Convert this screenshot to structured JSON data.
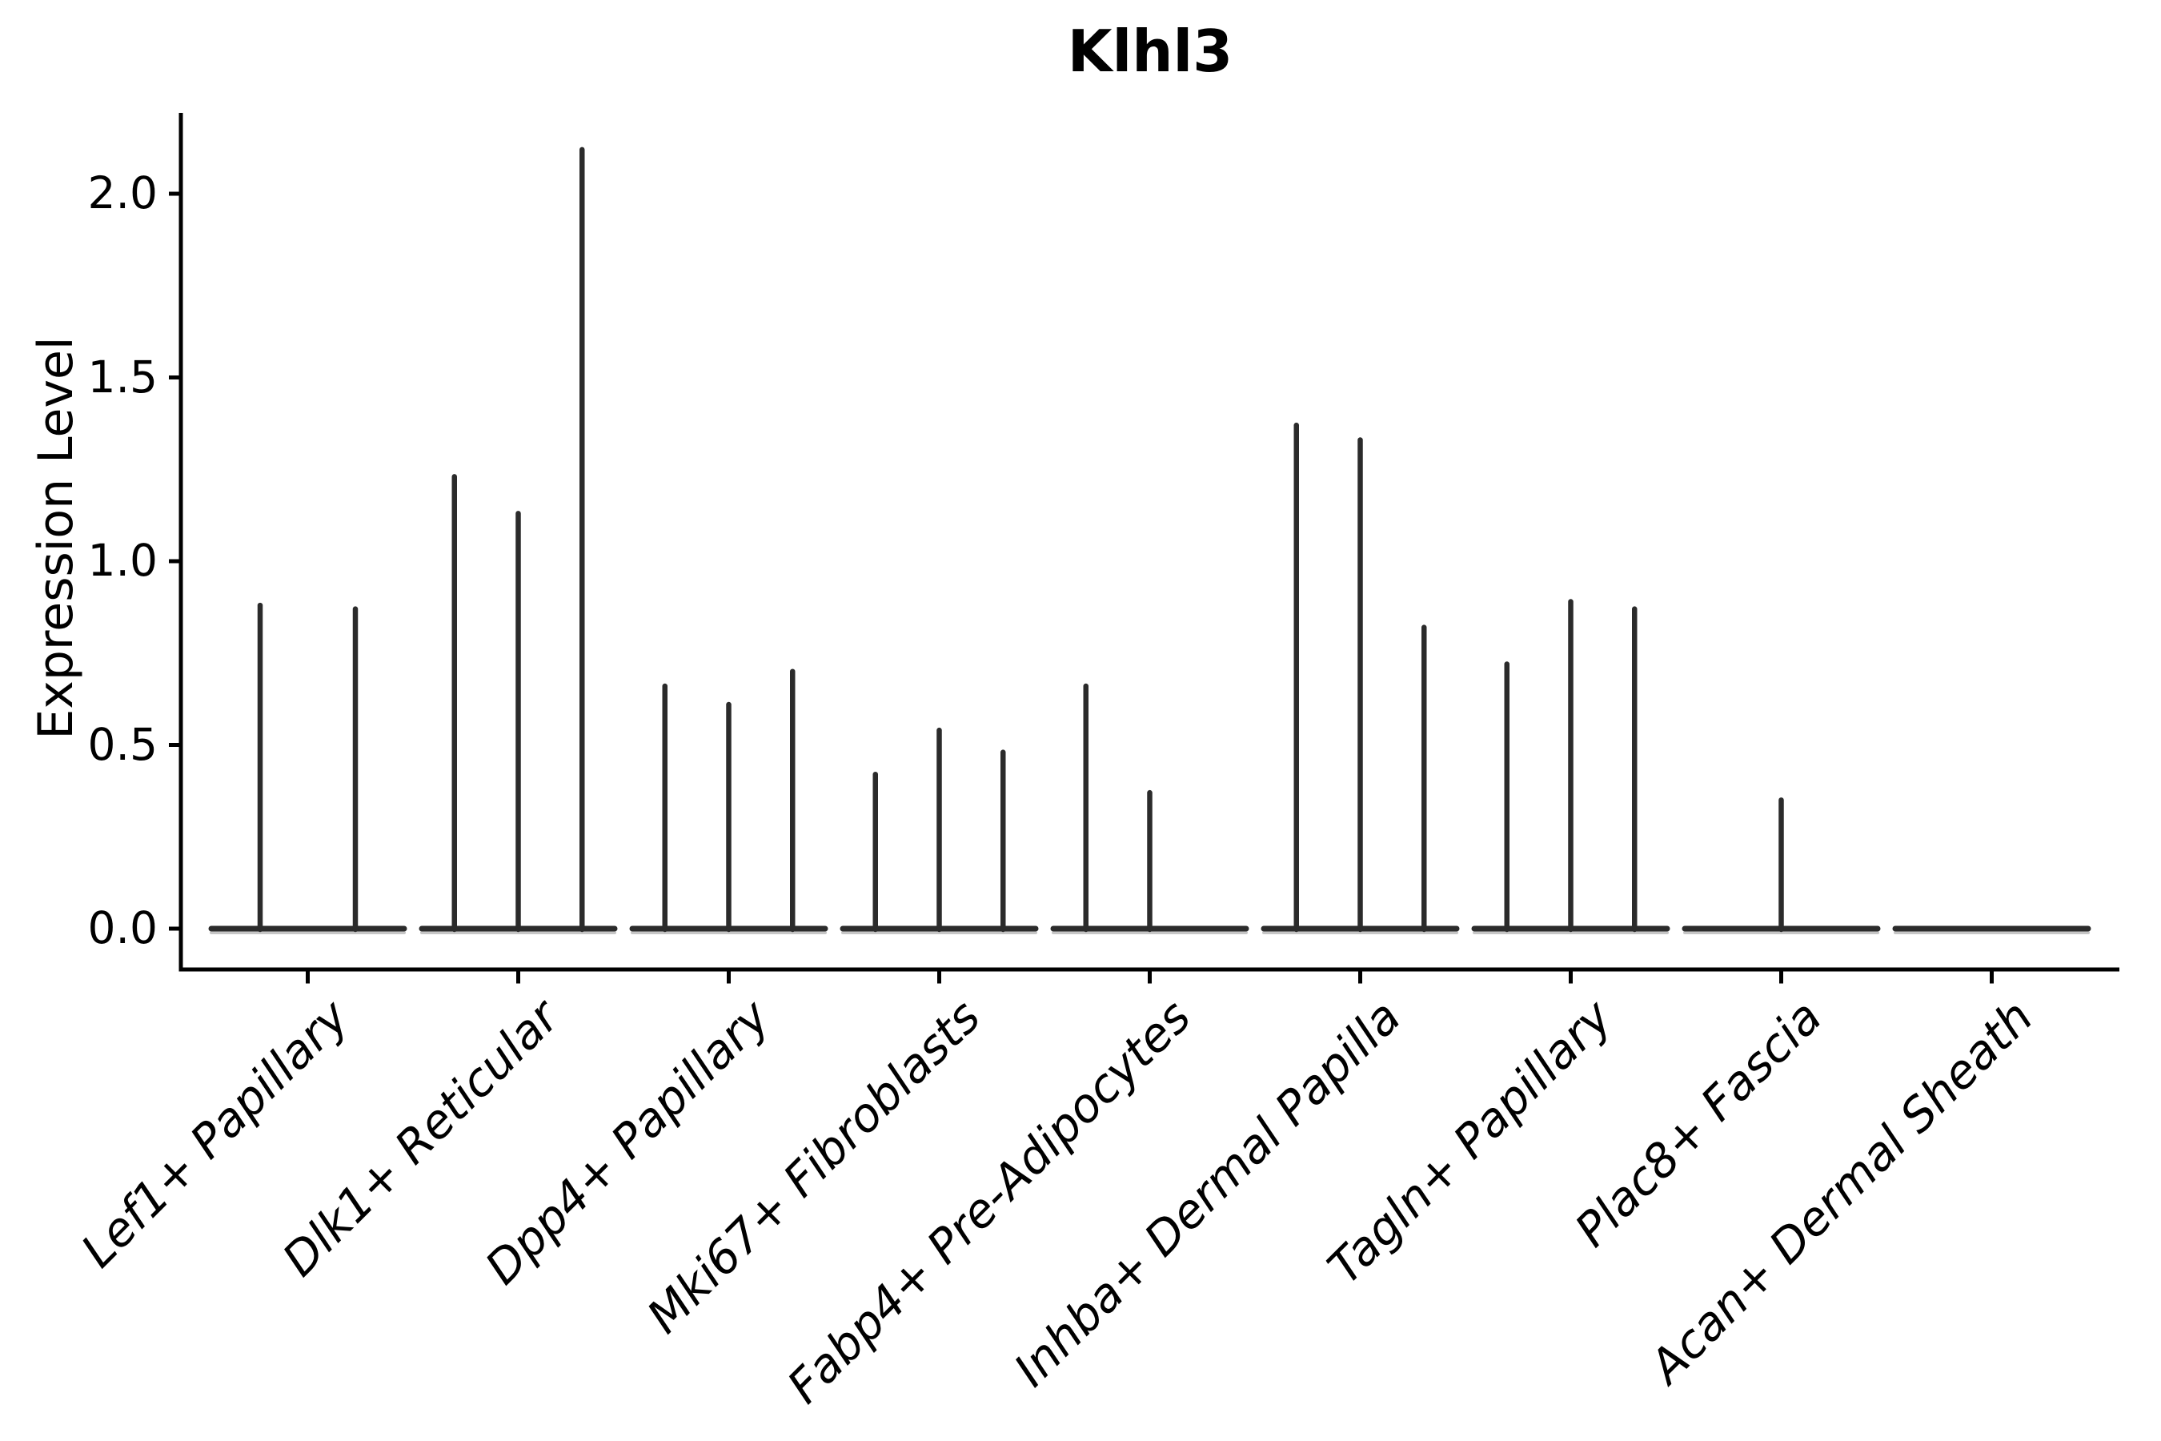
{
  "chart_data": {
    "type": "violin",
    "title": "Klhl3",
    "ylabel": "Expression Level",
    "xlabel": "",
    "yticks": [
      0.0,
      0.5,
      1.0,
      1.5,
      2.0
    ],
    "ytick_labels": [
      "0.0",
      "0.5",
      "1.0",
      "1.5",
      "2.0"
    ],
    "ylim": [
      -0.11,
      2.22
    ],
    "grid": false,
    "legend": false,
    "note": "Seurat/scanpy-style stacked violin column: each category holds 2-3 collapsed violins (flat baseline at 0) with a thin spike up to the max expression value; 0 means fully flat violin with no spike",
    "categories": [
      "Lef1+ Papillary",
      "Dlk1+ Reticular",
      "Dpp4+ Papillary",
      "Mki67+ Fibroblasts",
      "Fabp4+ Pre-Adipocytes",
      "Inhba+ Dermal Papilla",
      "Tagln+ Papillary",
      "Plac8+ Fascia",
      "Acan+ Dermal Sheath"
    ],
    "groups": [
      {
        "category": "Lef1+ Papillary",
        "violins": [
          0.88,
          0.87
        ]
      },
      {
        "category": "Dlk1+ Reticular",
        "violins": [
          1.23,
          1.13,
          2.12
        ]
      },
      {
        "category": "Dpp4+ Papillary",
        "violins": [
          0.66,
          0.61,
          0.7
        ]
      },
      {
        "category": "Mki67+ Fibroblasts",
        "violins": [
          0.42,
          0.54,
          0.48
        ]
      },
      {
        "category": "Fabp4+ Pre-Adipocytes",
        "violins": [
          0.66,
          0.37,
          0.0
        ]
      },
      {
        "category": "Inhba+ Dermal Papilla",
        "violins": [
          1.37,
          1.33,
          0.82
        ]
      },
      {
        "category": "Tagln+ Papillary",
        "violins": [
          0.72,
          0.89,
          0.87
        ]
      },
      {
        "category": "Plac8+ Fascia",
        "violins": [
          0.0,
          0.35,
          0.0
        ]
      },
      {
        "category": "Acan+ Dermal Sheath",
        "violins": [
          0.0,
          0.0,
          0.0
        ]
      }
    ],
    "colors": {
      "violin_stroke": "#2b2b2b",
      "violin_fill_sliver": "#c6c6c6",
      "axis": "#000000",
      "text": "#000000",
      "background": "#ffffff"
    }
  }
}
